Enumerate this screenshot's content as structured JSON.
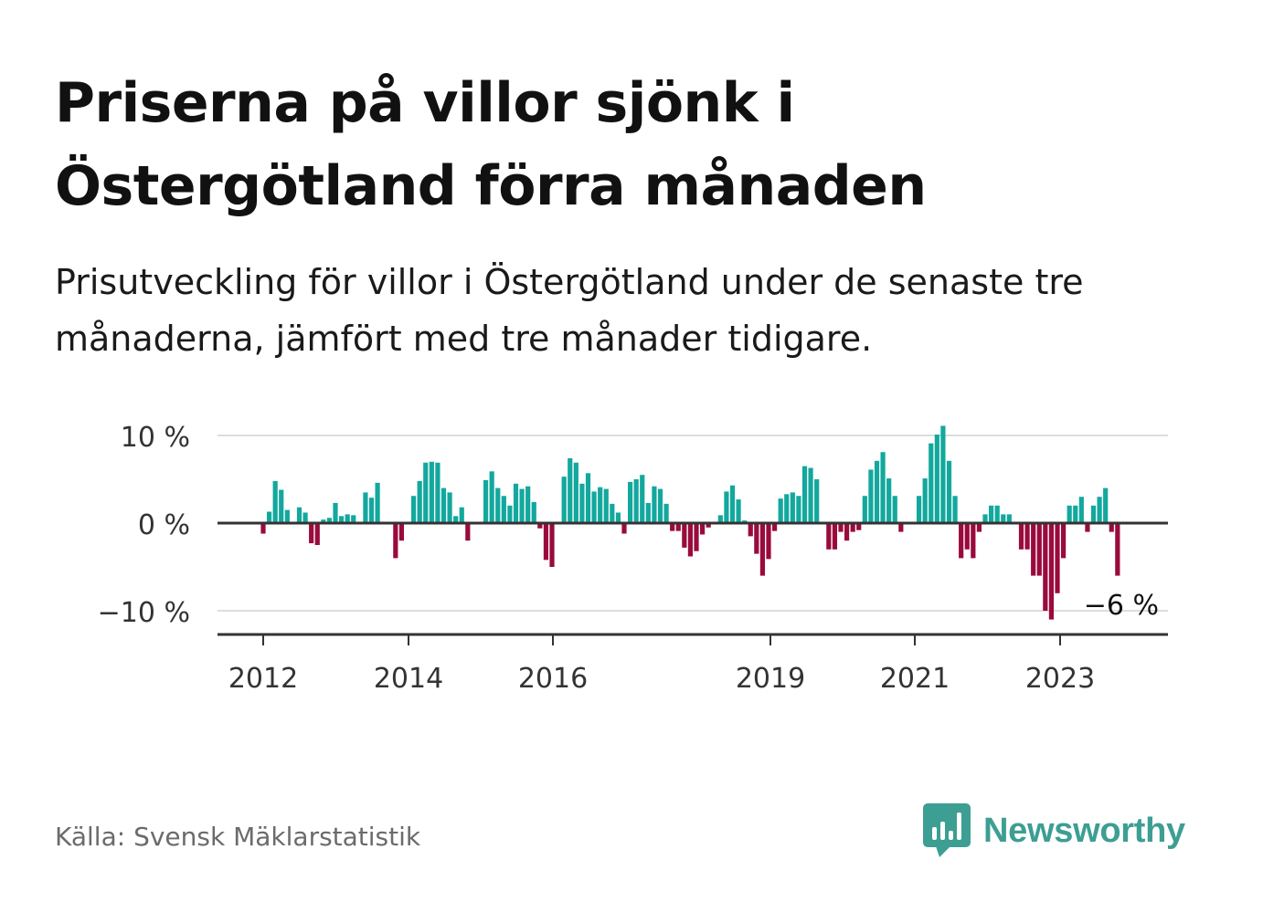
{
  "title": "Priserna på villor sjönk i Östergötland förra månaden",
  "subtitle": "Prisutveckling för villor i Östergötland under de senaste tre månaderna, jämfört med tre månader tidigare.",
  "source": "Källa: Svensk Mäklarstatistik",
  "brand": {
    "name": "Newsworthy",
    "icon": "bar-chart-speech-bubble-icon",
    "color": "#3d9e93"
  },
  "colors": {
    "positive": "#13a89e",
    "negative": "#9a0a3d",
    "axis": "#333333",
    "grid": "#dddddd",
    "tick_text": "#333333"
  },
  "chart_data": {
    "type": "bar",
    "title": "",
    "xlabel": "",
    "ylabel": "",
    "unit": "%",
    "ylim": [
      -13,
      11.5
    ],
    "y_ticks": [
      10,
      0,
      -10
    ],
    "y_tick_labels": [
      "10 %",
      "0 %",
      "−10 %"
    ],
    "x_ticks": [
      2012,
      2014,
      2016,
      2019,
      2021,
      2023
    ],
    "x_tick_labels": [
      "2012",
      "2014",
      "2016",
      "2019",
      "2021",
      "2023"
    ],
    "x_start": "2011-07",
    "grid": true,
    "series": [
      {
        "frequency": "monthly",
        "values": [
          null,
          null,
          null,
          null,
          null,
          null,
          -1.2,
          1.3,
          4.8,
          3.8,
          1.5,
          0.1,
          1.8,
          1.2,
          -2.3,
          -2.5,
          0.4,
          0.6,
          2.3,
          0.8,
          1.0,
          0.9,
          0.1,
          3.5,
          2.9,
          4.6,
          0.1,
          0.1,
          -4.0,
          -2.0,
          0.1,
          3.1,
          4.8,
          6.9,
          7.0,
          6.9,
          4.0,
          3.5,
          0.8,
          1.8,
          -2.0,
          0.1,
          0.1,
          4.9,
          5.9,
          4.0,
          3.1,
          2.0,
          4.5,
          3.9,
          4.2,
          2.4,
          -0.6,
          -4.2,
          -5.0,
          0.1,
          5.3,
          7.4,
          6.9,
          4.5,
          5.7,
          3.6,
          4.1,
          3.9,
          2.2,
          1.2,
          -1.2,
          4.7,
          5.0,
          5.5,
          2.3,
          4.2,
          3.9,
          2.2,
          -0.9,
          -0.9,
          -2.8,
          -3.8,
          -3.2,
          -1.3,
          -0.5,
          0.1,
          0.9,
          3.6,
          4.3,
          2.7,
          0.3,
          -1.5,
          -3.5,
          -6.0,
          -4.1,
          -0.9,
          2.8,
          3.3,
          3.5,
          3.1,
          6.5,
          6.3,
          5.0,
          0.1,
          -3.0,
          -3.0,
          -1.0,
          -2.0,
          -1.0,
          -0.8,
          3.1,
          6.1,
          7.1,
          8.1,
          5.1,
          3.1,
          -1.0,
          0.1,
          0.1,
          3.1,
          5.1,
          9.1,
          10.1,
          11.1,
          7.1,
          3.1,
          -4.0,
          -3.0,
          -4.0,
          -1.0,
          1.0,
          2.0,
          2.0,
          1.0,
          1.0,
          0.1,
          -3.0,
          -3.0,
          -6.0,
          -6.0,
          -10.0,
          -11.0,
          -8.0,
          -4.0,
          2.0,
          2.0,
          3.0,
          -1.0,
          2.0,
          3.0,
          4.0,
          -1.0,
          -6.0
        ]
      }
    ],
    "annotation": {
      "label": "−6 %",
      "value": -6
    }
  }
}
